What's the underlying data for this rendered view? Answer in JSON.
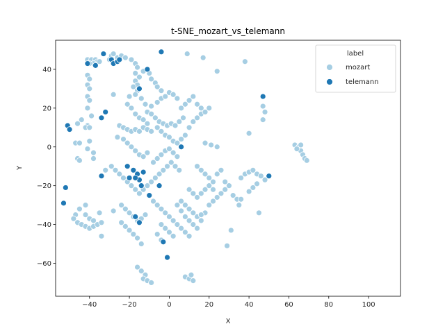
{
  "chart_data": {
    "type": "scatter",
    "title": "t-SNE_mozart_vs_telemann",
    "xlabel": "X",
    "ylabel": "Y",
    "xlim": [
      -57,
      116
    ],
    "ylim": [
      -77,
      55
    ],
    "xticks": [
      -40,
      -20,
      0,
      20,
      40,
      60,
      80,
      100
    ],
    "yticks": [
      -60,
      -40,
      -20,
      0,
      20,
      40
    ],
    "grid": false,
    "legend": {
      "title": "label",
      "placement": "top-right"
    },
    "series": [
      {
        "name": "mozart",
        "color": "#a6cee3",
        "points": [
          [
            -41,
            45
          ],
          [
            -39,
            45
          ],
          [
            -37,
            45
          ],
          [
            -36,
            44
          ],
          [
            -38,
            43
          ],
          [
            -40,
            43
          ],
          [
            -37,
            42
          ],
          [
            -35,
            44
          ],
          [
            -30,
            45
          ],
          [
            -29,
            47
          ],
          [
            -28,
            48
          ],
          [
            -26,
            46
          ],
          [
            -24,
            47
          ],
          [
            -22,
            46
          ],
          [
            -19,
            45
          ],
          [
            -17,
            43
          ],
          [
            -16,
            41
          ],
          [
            -17,
            38
          ],
          [
            -15,
            36
          ],
          [
            -17,
            34
          ],
          [
            -16,
            32
          ],
          [
            -18,
            31
          ],
          [
            -16,
            29
          ],
          [
            -41,
            37
          ],
          [
            -40,
            35
          ],
          [
            -41,
            32
          ],
          [
            -40,
            30
          ],
          [
            -41,
            26
          ],
          [
            -40,
            24
          ],
          [
            -41,
            20
          ],
          [
            -39,
            16
          ],
          [
            -41,
            11
          ],
          [
            -42,
            10
          ],
          [
            -40,
            10
          ],
          [
            -46,
            12
          ],
          [
            -44,
            14
          ],
          [
            -40,
            3
          ],
          [
            -41,
            -1
          ],
          [
            -38,
            -3
          ],
          [
            -38,
            -6
          ],
          [
            -47,
            2
          ],
          [
            -45,
            2
          ],
          [
            -46,
            -6
          ],
          [
            -45,
            -7
          ],
          [
            -28,
            27
          ],
          [
            -20,
            26
          ],
          [
            -17,
            27
          ],
          [
            -14,
            25
          ],
          [
            -12,
            22
          ],
          [
            -9,
            21
          ],
          [
            -6,
            23
          ],
          [
            -4,
            25
          ],
          [
            -2,
            26
          ],
          [
            0,
            28
          ],
          [
            2,
            27
          ],
          [
            4,
            25
          ],
          [
            -13,
            39
          ],
          [
            -10,
            38
          ],
          [
            -9,
            35
          ],
          [
            -7,
            33
          ],
          [
            -6,
            31
          ],
          [
            -4,
            29
          ],
          [
            -11,
            18
          ],
          [
            -9,
            17
          ],
          [
            -7,
            15
          ],
          [
            -5,
            13
          ],
          [
            -3,
            12
          ],
          [
            -1,
            11
          ],
          [
            1,
            12
          ],
          [
            3,
            11
          ],
          [
            5,
            13
          ],
          [
            7,
            15
          ],
          [
            -21,
            22
          ],
          [
            -19,
            20
          ],
          [
            -17,
            17
          ],
          [
            -15,
            15
          ],
          [
            -13,
            14
          ],
          [
            -11,
            12
          ],
          [
            -25,
            11
          ],
          [
            -23,
            10
          ],
          [
            -21,
            9
          ],
          [
            -19,
            8
          ],
          [
            -17,
            9
          ],
          [
            -15,
            8
          ],
          [
            -13,
            10
          ],
          [
            -11,
            9
          ],
          [
            -9,
            8
          ],
          [
            -26,
            5
          ],
          [
            -23,
            4
          ],
          [
            -21,
            2
          ],
          [
            -19,
            0
          ],
          [
            -17,
            -2
          ],
          [
            -15,
            -4
          ],
          [
            -13,
            -5
          ],
          [
            -11,
            -3
          ],
          [
            -6,
            10
          ],
          [
            -4,
            8
          ],
          [
            -2,
            6
          ],
          [
            0,
            5
          ],
          [
            2,
            3
          ],
          [
            4,
            2
          ],
          [
            6,
            4
          ],
          [
            8,
            6
          ],
          [
            10,
            10
          ],
          [
            12,
            13
          ],
          [
            14,
            15
          ],
          [
            16,
            17
          ],
          [
            18,
            18
          ],
          [
            20,
            20
          ],
          [
            6,
            20
          ],
          [
            8,
            22
          ],
          [
            10,
            24
          ],
          [
            12,
            26
          ],
          [
            14,
            22
          ],
          [
            16,
            20
          ],
          [
            9,
            48
          ],
          [
            17,
            46
          ],
          [
            24,
            39
          ],
          [
            38,
            44
          ],
          [
            40,
            7
          ],
          [
            18,
            2
          ],
          [
            21,
            1
          ],
          [
            24,
            0
          ],
          [
            -42,
            -30
          ],
          [
            -45,
            -32
          ],
          [
            -47,
            -35
          ],
          [
            -48,
            -37
          ],
          [
            -46,
            -39
          ],
          [
            -44,
            -40
          ],
          [
            -42,
            -41
          ],
          [
            -40,
            -42
          ],
          [
            -38,
            -41
          ],
          [
            -36,
            -40
          ],
          [
            -34,
            -39
          ],
          [
            -42,
            -35
          ],
          [
            -40,
            -37
          ],
          [
            -38,
            -38
          ],
          [
            -35,
            -34
          ],
          [
            -34,
            -46
          ],
          [
            -28,
            -33
          ],
          [
            -24,
            -30
          ],
          [
            -22,
            -32
          ],
          [
            -20,
            -34
          ],
          [
            -18,
            -36
          ],
          [
            -16,
            -38
          ],
          [
            -14,
            -37
          ],
          [
            -12,
            -35
          ],
          [
            -24,
            -39
          ],
          [
            -22,
            -41
          ],
          [
            -20,
            -43
          ],
          [
            -18,
            -45
          ],
          [
            -16,
            -47
          ],
          [
            -14,
            -50
          ],
          [
            -32,
            -12
          ],
          [
            -29,
            -10
          ],
          [
            -27,
            -12
          ],
          [
            -25,
            -14
          ],
          [
            -23,
            -16
          ],
          [
            -21,
            -18
          ],
          [
            -19,
            -20
          ],
          [
            -17,
            -22
          ],
          [
            -15,
            -24
          ],
          [
            -13,
            -22
          ],
          [
            -11,
            -20
          ],
          [
            -9,
            -18
          ],
          [
            -7,
            -16
          ],
          [
            -5,
            -14
          ],
          [
            -3,
            -12
          ],
          [
            -1,
            -10
          ],
          [
            1,
            -8
          ],
          [
            3,
            -10
          ],
          [
            5,
            -12
          ],
          [
            -8,
            -8
          ],
          [
            -6,
            -6
          ],
          [
            -4,
            -4
          ],
          [
            -2,
            -2
          ],
          [
            0,
            -1
          ],
          [
            2,
            -3
          ],
          [
            4,
            -5
          ],
          [
            -10,
            -25
          ],
          [
            -8,
            -28
          ],
          [
            -6,
            -30
          ],
          [
            -4,
            -32
          ],
          [
            -2,
            -34
          ],
          [
            0,
            -36
          ],
          [
            2,
            -38
          ],
          [
            4,
            -40
          ],
          [
            6,
            -42
          ],
          [
            8,
            -44
          ],
          [
            10,
            -46
          ],
          [
            -4,
            -40
          ],
          [
            -2,
            -42
          ],
          [
            0,
            -44
          ],
          [
            2,
            -46
          ],
          [
            -6,
            -45
          ],
          [
            -4,
            -48
          ],
          [
            4,
            -30
          ],
          [
            6,
            -28
          ],
          [
            8,
            -30
          ],
          [
            10,
            -32
          ],
          [
            12,
            -34
          ],
          [
            14,
            -36
          ],
          [
            16,
            -38
          ],
          [
            18,
            -34
          ],
          [
            20,
            -30
          ],
          [
            22,
            -28
          ],
          [
            6,
            -33
          ],
          [
            8,
            -36
          ],
          [
            10,
            -38
          ],
          [
            12,
            -40
          ],
          [
            14,
            -42
          ],
          [
            16,
            -35
          ],
          [
            10,
            -22
          ],
          [
            12,
            -24
          ],
          [
            14,
            -26
          ],
          [
            16,
            -24
          ],
          [
            18,
            -22
          ],
          [
            20,
            -20
          ],
          [
            22,
            -22
          ],
          [
            24,
            -26
          ],
          [
            26,
            -24
          ],
          [
            28,
            -22
          ],
          [
            14,
            -10
          ],
          [
            16,
            -12
          ],
          [
            18,
            -14
          ],
          [
            20,
            -16
          ],
          [
            22,
            -18
          ],
          [
            24,
            -14
          ],
          [
            26,
            -12
          ],
          [
            28,
            -18
          ],
          [
            30,
            -20
          ],
          [
            32,
            -25
          ],
          [
            34,
            -27
          ],
          [
            35,
            -30
          ],
          [
            36,
            -27
          ],
          [
            36,
            -16
          ],
          [
            38,
            -14
          ],
          [
            40,
            -13
          ],
          [
            42,
            -12
          ],
          [
            44,
            -14
          ],
          [
            46,
            -15
          ],
          [
            48,
            -17
          ],
          [
            44,
            -19
          ],
          [
            42,
            -21
          ],
          [
            40,
            -23
          ],
          [
            31,
            -43
          ],
          [
            29,
            -51
          ],
          [
            45,
            -34
          ],
          [
            -16,
            -62
          ],
          [
            -14,
            -64
          ],
          [
            -12,
            -66
          ],
          [
            -13,
            -68
          ],
          [
            -11,
            -69
          ],
          [
            -9,
            -70
          ],
          [
            8,
            -67
          ],
          [
            10,
            -68
          ],
          [
            12,
            -69
          ],
          [
            11,
            -66
          ],
          [
            63,
            1
          ],
          [
            65,
            0
          ],
          [
            66,
            -2
          ],
          [
            67,
            -4
          ],
          [
            68,
            -6
          ],
          [
            69,
            -7
          ],
          [
            66,
            1
          ],
          [
            64,
            -1
          ],
          [
            47,
            21
          ],
          [
            48,
            18
          ],
          [
            47,
            14
          ]
        ]
      },
      {
        "name": "telemann",
        "color": "#1f78b4",
        "points": [
          [
            -41,
            43
          ],
          [
            -37,
            42
          ],
          [
            -33,
            48
          ],
          [
            -29,
            45
          ],
          [
            -28,
            43
          ],
          [
            -26,
            44
          ],
          [
            -25,
            45
          ],
          [
            -11,
            40
          ],
          [
            -4,
            49
          ],
          [
            -15,
            30
          ],
          [
            -51,
            11
          ],
          [
            -50,
            9
          ],
          [
            -34,
            15
          ],
          [
            -32,
            18
          ],
          [
            6,
            0
          ],
          [
            -18,
            -12
          ],
          [
            -16,
            -14
          ],
          [
            -15,
            -17
          ],
          [
            -14,
            -20
          ],
          [
            -17,
            -16
          ],
          [
            -20,
            -16
          ],
          [
            -13,
            -13
          ],
          [
            -21,
            -10
          ],
          [
            -34,
            -15
          ],
          [
            -10,
            -25
          ],
          [
            -5,
            -20
          ],
          [
            -52,
            -21
          ],
          [
            -53,
            -29
          ],
          [
            -17,
            -36
          ],
          [
            -15,
            -39
          ],
          [
            -3,
            -49
          ],
          [
            -1,
            -57
          ],
          [
            47,
            26
          ],
          [
            50,
            -15
          ]
        ]
      }
    ]
  }
}
